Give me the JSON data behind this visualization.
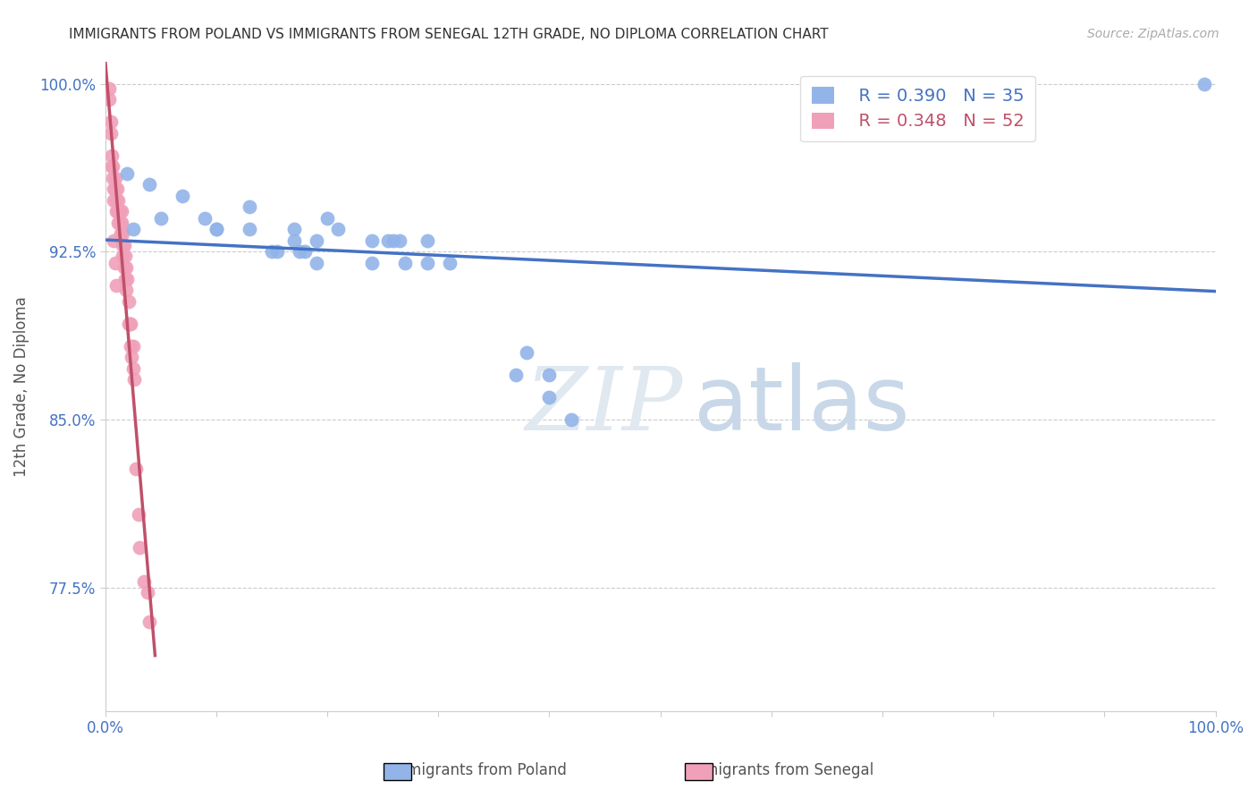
{
  "title": "IMMIGRANTS FROM POLAND VS IMMIGRANTS FROM SENEGAL 12TH GRADE, NO DIPLOMA CORRELATION CHART",
  "source": "Source: ZipAtlas.com",
  "ylabel": "12th Grade, No Diploma",
  "xlim": [
    0,
    1
  ],
  "ylim": [
    0.72,
    1.01
  ],
  "yticks": [
    0.775,
    0.85,
    0.925,
    1.0
  ],
  "ytick_labels": [
    "77.5%",
    "85.0%",
    "92.5%",
    "100.0%"
  ],
  "xticks": [
    0.0,
    0.1,
    0.2,
    0.3,
    0.4,
    0.5,
    0.6,
    0.7,
    0.8,
    0.9,
    1.0
  ],
  "xtick_labels": [
    "0.0%",
    "",
    "",
    "",
    "",
    "",
    "",
    "",
    "",
    "",
    "100.0%"
  ],
  "legend_poland_r": "R = 0.390",
  "legend_poland_n": "N = 35",
  "legend_senegal_r": "R = 0.348",
  "legend_senegal_n": "N = 52",
  "color_poland": "#92b4e8",
  "color_senegal": "#f0a0b8",
  "color_line_poland": "#4472c4",
  "color_line_senegal": "#c0506a",
  "color_axis_labels": "#4472c4",
  "watermark_zip": "ZIP",
  "watermark_atlas": "atlas",
  "poland_x": [
    0.02,
    0.025,
    0.04,
    0.05,
    0.07,
    0.09,
    0.1,
    0.1,
    0.13,
    0.13,
    0.15,
    0.155,
    0.17,
    0.17,
    0.175,
    0.18,
    0.19,
    0.19,
    0.2,
    0.21,
    0.24,
    0.24,
    0.255,
    0.26,
    0.265,
    0.27,
    0.29,
    0.29,
    0.31,
    0.37,
    0.38,
    0.4,
    0.4,
    0.99,
    0.42
  ],
  "poland_y": [
    0.96,
    0.935,
    0.955,
    0.94,
    0.95,
    0.94,
    0.935,
    0.935,
    0.935,
    0.945,
    0.925,
    0.925,
    0.935,
    0.93,
    0.925,
    0.925,
    0.93,
    0.92,
    0.94,
    0.935,
    0.93,
    0.92,
    0.93,
    0.93,
    0.93,
    0.92,
    0.93,
    0.92,
    0.92,
    0.87,
    0.88,
    0.87,
    0.86,
    1.0,
    0.85
  ],
  "senegal_x": [
    0.004,
    0.004,
    0.005,
    0.005,
    0.006,
    0.006,
    0.007,
    0.007,
    0.008,
    0.008,
    0.009,
    0.009,
    0.01,
    0.01,
    0.011,
    0.011,
    0.012,
    0.012,
    0.013,
    0.013,
    0.014,
    0.014,
    0.015,
    0.015,
    0.016,
    0.016,
    0.016,
    0.017,
    0.017,
    0.018,
    0.018,
    0.019,
    0.019,
    0.02,
    0.021,
    0.021,
    0.022,
    0.023,
    0.023,
    0.024,
    0.025,
    0.025,
    0.026,
    0.028,
    0.03,
    0.031,
    0.035,
    0.038,
    0.04,
    0.008,
    0.009,
    0.01
  ],
  "senegal_y": [
    0.998,
    0.993,
    0.978,
    0.983,
    0.968,
    0.963,
    0.958,
    0.963,
    0.953,
    0.948,
    0.958,
    0.953,
    0.948,
    0.943,
    0.953,
    0.943,
    0.948,
    0.938,
    0.943,
    0.938,
    0.938,
    0.933,
    0.943,
    0.938,
    0.928,
    0.923,
    0.933,
    0.928,
    0.918,
    0.923,
    0.913,
    0.918,
    0.908,
    0.913,
    0.903,
    0.893,
    0.893,
    0.883,
    0.893,
    0.878,
    0.883,
    0.873,
    0.868,
    0.828,
    0.808,
    0.793,
    0.778,
    0.773,
    0.76,
    0.93,
    0.92,
    0.91
  ]
}
